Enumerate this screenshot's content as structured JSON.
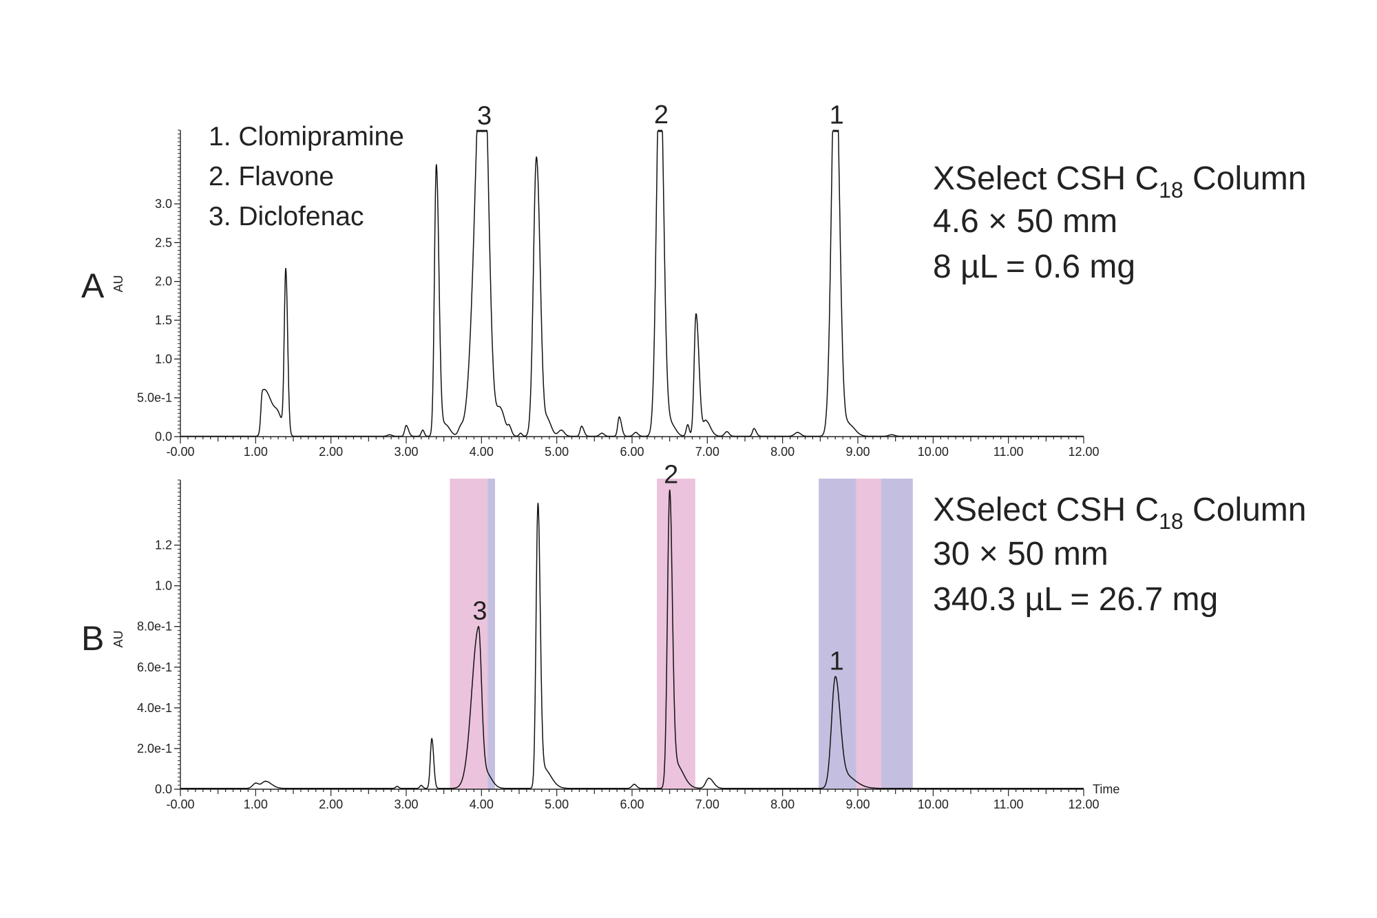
{
  "chart_data": [
    {
      "type": "line",
      "panel_label": "A",
      "ylabel": "AU",
      "xlabel": "",
      "xlim": [
        0,
        12
      ],
      "ylim": [
        0,
        3.95
      ],
      "x_tick_labels": [
        "-0.00",
        "1.00",
        "2.00",
        "3.00",
        "4.00",
        "5.00",
        "6.00",
        "7.00",
        "8.00",
        "9.00",
        "10.00",
        "11.00",
        "12.00"
      ],
      "y_ticks": [
        0,
        0.5,
        1.0,
        1.5,
        2.0,
        2.5,
        3.0
      ],
      "y_tick_labels": [
        "0.0",
        "5.0e-1",
        "1.0",
        "1.5",
        "2.0",
        "2.5",
        "3.0"
      ],
      "detector_max": 3.94,
      "peaks": [
        {
          "t": 1.09,
          "h": 0.55,
          "sl": 0.02,
          "sr": 0.08
        },
        {
          "t": 1.2,
          "h": 0.22,
          "sl": 0.06,
          "sr": 0.06
        },
        {
          "t": 1.4,
          "h": 2.1,
          "sl": 0.02,
          "sr": 0.025
        },
        {
          "t": 1.3,
          "h": 0.25,
          "sl": 0.05,
          "sr": 0.06
        },
        {
          "t": 2.78,
          "h": 0.02,
          "sl": 0.03,
          "sr": 0.03
        },
        {
          "t": 3.0,
          "h": 0.14,
          "sl": 0.02,
          "sr": 0.03
        },
        {
          "t": 3.22,
          "h": 0.08,
          "sl": 0.02,
          "sr": 0.02
        },
        {
          "t": 3.4,
          "h": 3.5,
          "sl": 0.025,
          "sr": 0.035
        },
        {
          "t": 3.52,
          "h": 0.15,
          "sl": 0.04,
          "sr": 0.06
        },
        {
          "t": 3.72,
          "h": 0.08,
          "sl": 0.03,
          "sr": 0.03
        },
        {
          "t": 4.02,
          "h": 5.5,
          "sl": 0.1,
          "sr": 0.07
        },
        {
          "t": 4.25,
          "h": 0.35,
          "sl": 0.05,
          "sr": 0.06
        },
        {
          "t": 4.37,
          "h": 0.1,
          "sl": 0.02,
          "sr": 0.03
        },
        {
          "t": 4.52,
          "h": 0.04,
          "sl": 0.02,
          "sr": 0.02
        },
        {
          "t": 4.73,
          "h": 3.6,
          "sl": 0.04,
          "sr": 0.05
        },
        {
          "t": 4.88,
          "h": 0.2,
          "sl": 0.03,
          "sr": 0.05
        },
        {
          "t": 5.06,
          "h": 0.08,
          "sl": 0.04,
          "sr": 0.04
        },
        {
          "t": 5.33,
          "h": 0.13,
          "sl": 0.02,
          "sr": 0.03
        },
        {
          "t": 5.6,
          "h": 0.04,
          "sl": 0.03,
          "sr": 0.03
        },
        {
          "t": 5.83,
          "h": 0.25,
          "sl": 0.02,
          "sr": 0.03
        },
        {
          "t": 6.05,
          "h": 0.05,
          "sl": 0.03,
          "sr": 0.03
        },
        {
          "t": 6.37,
          "h": 5.0,
          "sl": 0.045,
          "sr": 0.05
        },
        {
          "t": 6.52,
          "h": 0.15,
          "sl": 0.04,
          "sr": 0.06
        },
        {
          "t": 6.74,
          "h": 0.15,
          "sl": 0.02,
          "sr": 0.02
        },
        {
          "t": 6.85,
          "h": 1.58,
          "sl": 0.025,
          "sr": 0.04
        },
        {
          "t": 6.98,
          "h": 0.2,
          "sl": 0.03,
          "sr": 0.06
        },
        {
          "t": 7.26,
          "h": 0.06,
          "sl": 0.03,
          "sr": 0.03
        },
        {
          "t": 7.62,
          "h": 0.1,
          "sl": 0.02,
          "sr": 0.03
        },
        {
          "t": 8.2,
          "h": 0.05,
          "sl": 0.04,
          "sr": 0.04
        },
        {
          "t": 8.7,
          "h": 5.2,
          "sl": 0.05,
          "sr": 0.055
        },
        {
          "t": 8.88,
          "h": 0.15,
          "sl": 0.04,
          "sr": 0.08
        },
        {
          "t": 9.45,
          "h": 0.02,
          "sl": 0.04,
          "sr": 0.04
        }
      ],
      "peak_labels": [
        {
          "label": "3",
          "t": 4.02
        },
        {
          "label": "2",
          "t": 6.37
        },
        {
          "label": "1",
          "t": 8.7
        }
      ],
      "legend": [
        "1.  Clomipramine",
        "2.  Flavone",
        "3.  Diclofenac"
      ],
      "info": {
        "line1": "XSelect CSH C",
        "line1_sub": "18",
        "line1_end": " Column",
        "line2": "4.6 × 50 mm",
        "line3": "8 µL = 0.6 mg"
      }
    },
    {
      "type": "line",
      "panel_label": "B",
      "ylabel": "AU",
      "xlabel": "Time",
      "xlim": [
        0,
        12
      ],
      "ylim": [
        0,
        1.52
      ],
      "x_tick_labels": [
        "-0.00",
        "1.00",
        "2.00",
        "3.00",
        "4.00",
        "5.00",
        "6.00",
        "7.00",
        "8.00",
        "9.00",
        "10.00",
        "11.00",
        "12.00"
      ],
      "y_ticks": [
        0,
        0.2,
        0.4,
        0.6,
        0.8,
        1.0,
        1.2
      ],
      "y_tick_labels": [
        "0.0",
        "2.0e-1",
        "4.0e-1",
        "6.0e-1",
        "8.0e-1",
        "1.0",
        "1.2"
      ],
      "peaks": [
        {
          "t": 1.0,
          "h": 0.025,
          "sl": 0.04,
          "sr": 0.04
        },
        {
          "t": 1.13,
          "h": 0.035,
          "sl": 0.05,
          "sr": 0.08
        },
        {
          "t": 2.88,
          "h": 0.01,
          "sl": 0.02,
          "sr": 0.02
        },
        {
          "t": 3.2,
          "h": 0.015,
          "sl": 0.02,
          "sr": 0.02
        },
        {
          "t": 3.34,
          "h": 0.245,
          "sl": 0.02,
          "sr": 0.025
        },
        {
          "t": 3.96,
          "h": 0.78,
          "sl": 0.09,
          "sr": 0.04
        },
        {
          "t": 4.05,
          "h": 0.08,
          "sl": 0.05,
          "sr": 0.08
        },
        {
          "t": 4.75,
          "h": 1.38,
          "sl": 0.025,
          "sr": 0.03
        },
        {
          "t": 4.82,
          "h": 0.1,
          "sl": 0.04,
          "sr": 0.1
        },
        {
          "t": 6.03,
          "h": 0.02,
          "sl": 0.03,
          "sr": 0.03
        },
        {
          "t": 6.5,
          "h": 1.45,
          "sl": 0.03,
          "sr": 0.035
        },
        {
          "t": 6.58,
          "h": 0.12,
          "sl": 0.04,
          "sr": 0.1
        },
        {
          "t": 7.02,
          "h": 0.05,
          "sl": 0.04,
          "sr": 0.06
        },
        {
          "t": 8.7,
          "h": 0.54,
          "sl": 0.05,
          "sr": 0.06
        },
        {
          "t": 8.8,
          "h": 0.07,
          "sl": 0.05,
          "sr": 0.15
        }
      ],
      "fractions": [
        {
          "start": 3.58,
          "end": 4.08,
          "color": "#ebc3dc"
        },
        {
          "start": 4.08,
          "end": 4.18,
          "color": "#c4bfe0"
        },
        {
          "start": 6.33,
          "end": 6.84,
          "color": "#ebc3dc"
        },
        {
          "start": 8.48,
          "end": 8.98,
          "color": "#c4bfe0"
        },
        {
          "start": 8.98,
          "end": 9.31,
          "color": "#ebc3dc"
        },
        {
          "start": 9.31,
          "end": 9.73,
          "color": "#c4bfe0"
        }
      ],
      "peak_labels": [
        {
          "label": "3",
          "t": 3.96
        },
        {
          "label": "2",
          "t": 6.5
        },
        {
          "label": "1",
          "t": 8.7
        }
      ],
      "info": {
        "line1": "XSelect CSH C",
        "line1_sub": "18",
        "line1_end": " Column",
        "line2": "30 × 50 mm",
        "line3": "340.3 µL = 26.7 mg"
      }
    }
  ]
}
